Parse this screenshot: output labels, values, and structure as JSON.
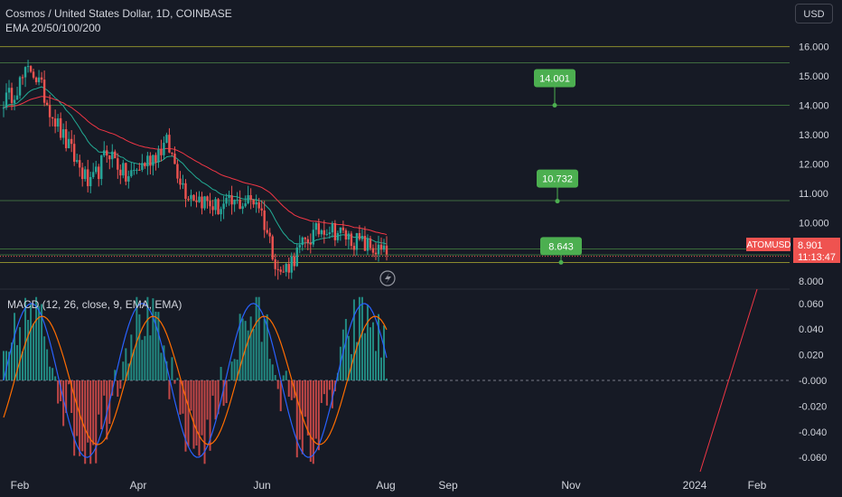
{
  "header": {
    "title": "Cosmos / United States Dollar, 1D, COINBASE",
    "indicator": "EMA 20/50/100/200"
  },
  "currency_button": "USD",
  "price_scale": {
    "ticks": [
      "16.000",
      "15.000",
      "14.000",
      "13.000",
      "12.000",
      "11.000",
      "10.000",
      "8.000"
    ]
  },
  "macd_scale": {
    "ticks": [
      "0.060",
      "0.040",
      "0.020",
      "-0.000",
      "-0.020",
      "-0.040",
      "-0.060"
    ]
  },
  "time_axis": {
    "labels": [
      "Feb",
      "Apr",
      "Jun",
      "Aug",
      "Sep",
      "Nov",
      "2024",
      "Feb"
    ]
  },
  "symbol_tag": {
    "symbol": "ATOMUSD",
    "price": "8.901",
    "countdown": "11:13:47"
  },
  "macd_label": "MACD (12, 26, close, 9, EMA, EMA)",
  "horizontal_levels": [
    16.0,
    15.45,
    14.0,
    10.75,
    9.1,
    8.9,
    8.64
  ],
  "targets": [
    {
      "label": "14.001",
      "value": 14.001
    },
    {
      "label": "10.732",
      "value": 10.732
    },
    {
      "label": "8.643",
      "value": 8.643
    }
  ],
  "colors": {
    "background": "#161a25",
    "up": "#26a69a",
    "down": "#ef5350",
    "target": "#4caf50",
    "macd_line": "#2962ff",
    "signal_line": "#ff6d00",
    "ema_fast": "#22ab94",
    "ema_slow": "#f23645"
  },
  "chart_data": {
    "type": "candlestick",
    "xlabel": "",
    "ylabel": "",
    "ylim": [
      7.4,
      16.5
    ],
    "grid": false,
    "anchors": [
      [
        "Feb",
        14.2
      ],
      [
        "Feb",
        15.3
      ],
      [
        "Mar",
        12.9
      ],
      [
        "Mar",
        11.2
      ],
      [
        "Mar",
        12.5
      ],
      [
        "Apr",
        11.5
      ],
      [
        "Apr",
        12.7
      ],
      [
        "May",
        11.1
      ],
      [
        "May",
        10.5
      ],
      [
        "Jun",
        10.8
      ],
      [
        "Jun",
        8.2
      ],
      [
        "Jul",
        9.4
      ],
      [
        "Jul",
        9.9
      ],
      [
        "Jul",
        9.5
      ],
      [
        "Aug",
        8.9
      ]
    ],
    "macd": {
      "name": "MACD",
      "ylim": [
        -0.07,
        0.07
      ],
      "histogram_min": -0.065,
      "histogram_max": 0.065
    }
  }
}
